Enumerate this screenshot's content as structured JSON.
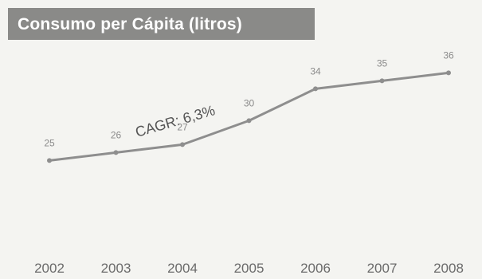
{
  "chart_data": {
    "type": "line",
    "title": "Consumo per Cápita (litros)",
    "categories": [
      "2002",
      "2003",
      "2004",
      "2005",
      "2006",
      "2007",
      "2008"
    ],
    "values": [
      25,
      26,
      27,
      30,
      34,
      35,
      36
    ],
    "annotation": "CAGR: 6,3%",
    "ylim": [
      15,
      40
    ],
    "grid": false,
    "legend": "none",
    "colors": {
      "line": "#8e8e8e",
      "title_bar": "#8a8a88",
      "background": "#f4f4f1"
    }
  }
}
